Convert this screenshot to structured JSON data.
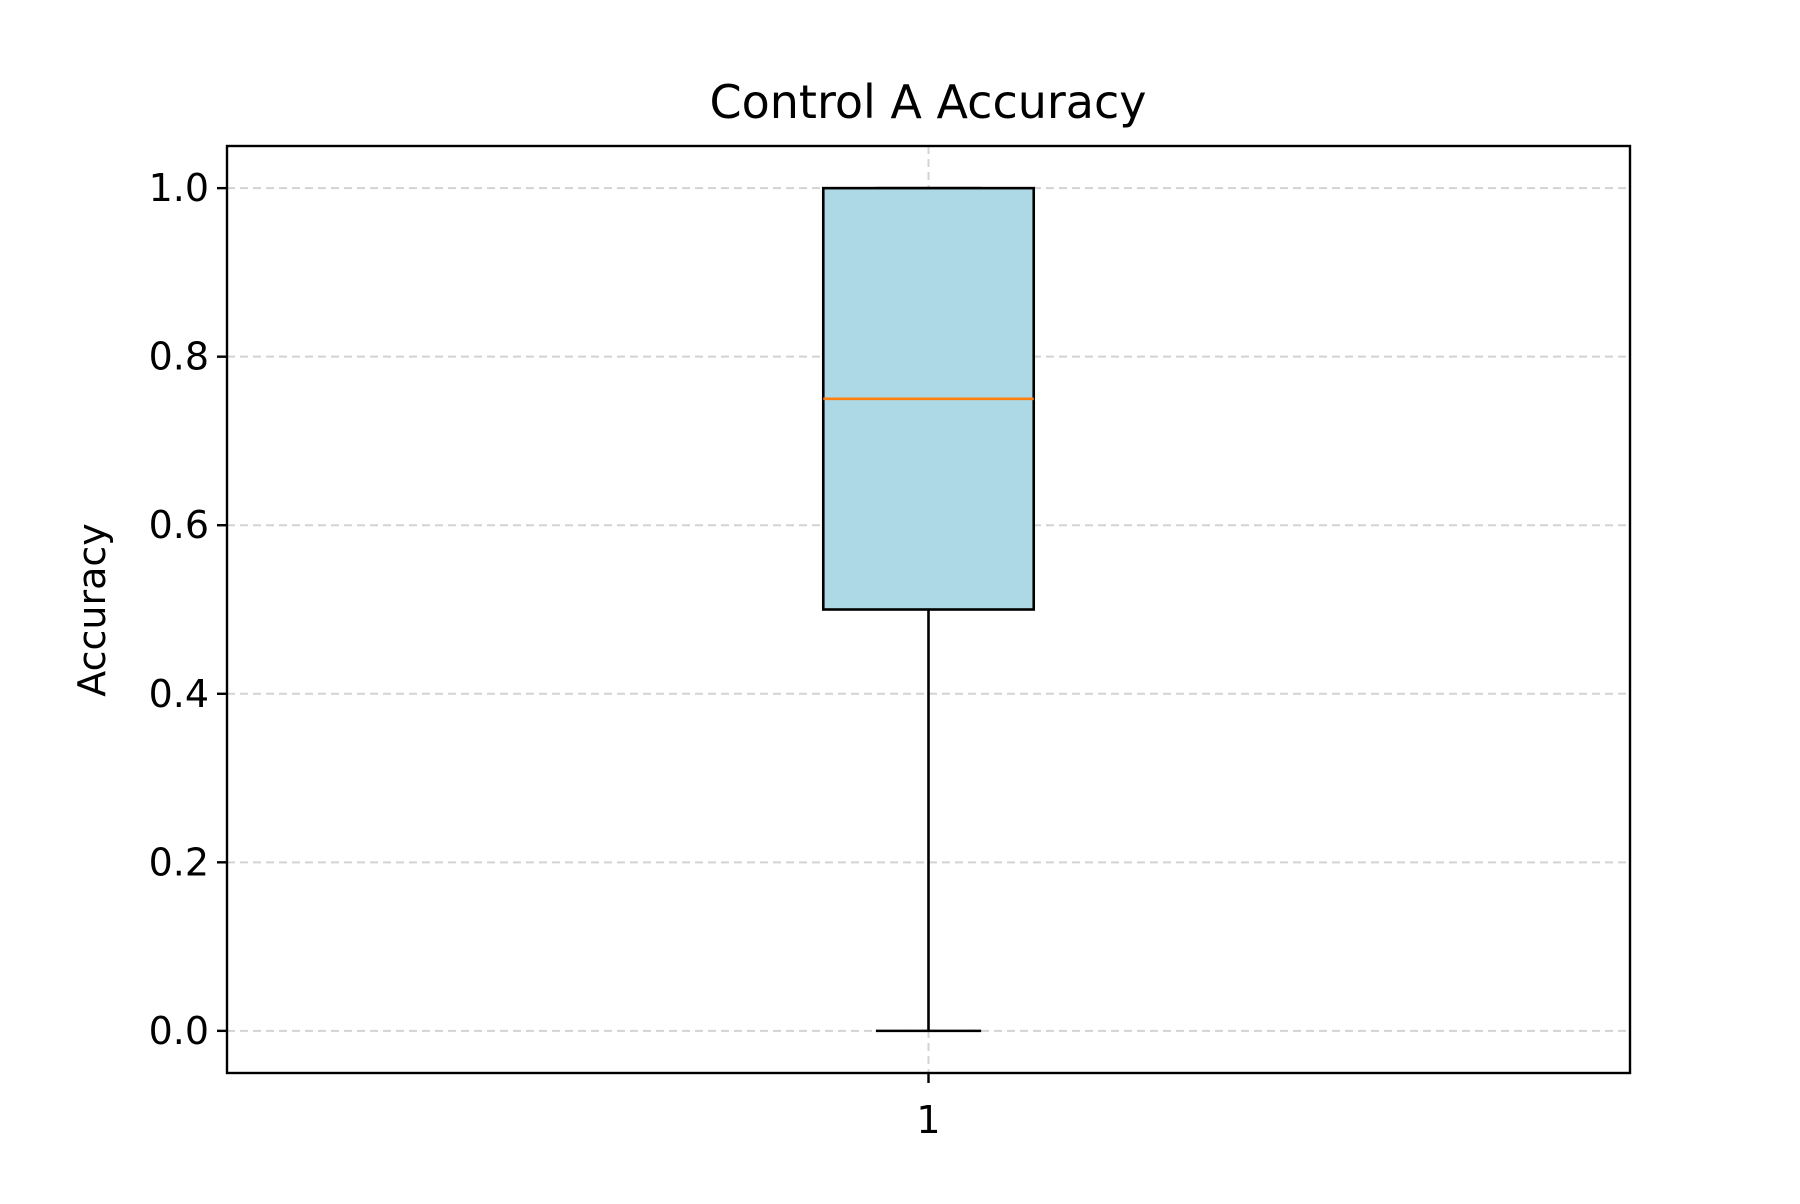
{
  "chart_data": {
    "type": "box",
    "title": "Control A Accuracy",
    "xlabel": "",
    "ylabel": "Accuracy",
    "categories": [
      "1"
    ],
    "boxes": [
      {
        "category": "1",
        "whisker_low": 0.0,
        "q1": 0.5,
        "median": 0.75,
        "q3": 1.0,
        "whisker_high": 1.0
      }
    ],
    "ylim": [
      -0.05,
      1.05
    ],
    "yticks": [
      0.0,
      0.2,
      0.4,
      0.6,
      0.8,
      1.0
    ],
    "ytick_labels": [
      "0.0",
      "0.2",
      "0.4",
      "0.6",
      "0.8",
      "1.0"
    ],
    "grid": true,
    "grid_style": "dashed",
    "colors": {
      "box_fill": "#add8e6",
      "box_edge": "#000000",
      "median": "#ff7f0e",
      "grid": "#d3d3d3"
    }
  }
}
